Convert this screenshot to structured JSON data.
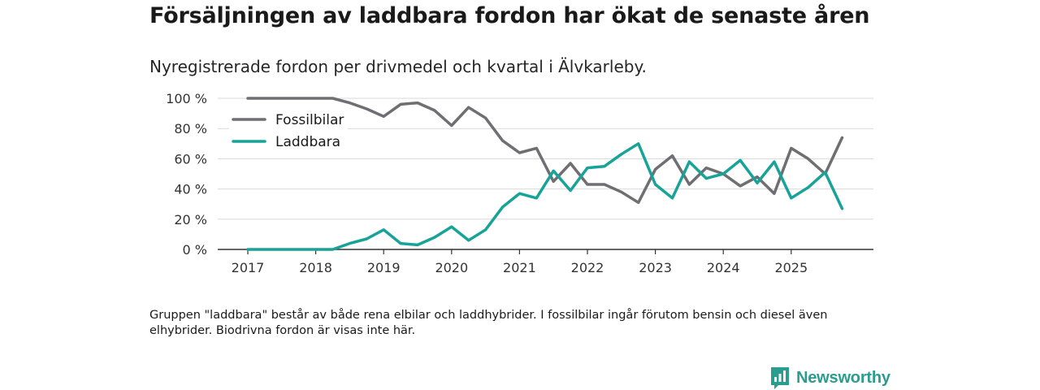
{
  "title": "Försäljningen av laddbara fordon har ökat de senaste åren",
  "subtitle": "Nyregistrerade fordon per drivmedel och kvartal i Älvkarleby.",
  "footnote": "Gruppen \"laddbara\" består av både rena elbilar och laddhybrider. I fossilbilar ingår förutom bensin och diesel även elhybrider. Biodrivna fordon är visas inte här.",
  "brand": {
    "name": "Newsworthy",
    "color": "#2a9d8f"
  },
  "chart_data": {
    "type": "line",
    "title": "Försäljningen av laddbara fordon har ökat de senaste åren",
    "xlabel": "",
    "ylabel": "",
    "x": [
      "2017 K1",
      "2017 K2",
      "2017 K3",
      "2017 K4",
      "2018 K1",
      "2018 K2",
      "2018 K3",
      "2018 K4",
      "2019 K1",
      "2019 K2",
      "2019 K3",
      "2019 K4",
      "2020 K1",
      "2020 K2",
      "2020 K3",
      "2020 K4",
      "2021 K1",
      "2021 K2",
      "2021 K3",
      "2021 K4",
      "2022 K1",
      "2022 K2",
      "2022 K3",
      "2022 K4",
      "2023 K1",
      "2023 K2",
      "2023 K3",
      "2023 K4",
      "2024 K1",
      "2024 K2",
      "2024 K3",
      "2024 K4",
      "2025 K1",
      "2025 K2",
      "2025 K3",
      "2025 K4"
    ],
    "x_ticks": [
      "2017",
      "2018",
      "2019",
      "2020",
      "2021",
      "2022",
      "2023",
      "2024",
      "2025"
    ],
    "y_ticks": [
      "0 %",
      "20 %",
      "40 %",
      "60 %",
      "80 %",
      "100 %"
    ],
    "ylim": [
      0,
      100
    ],
    "grid": true,
    "legend_position": "top-left",
    "series": [
      {
        "name": "Fossilbilar",
        "color": "#6e6e73",
        "values": [
          100,
          100,
          100,
          100,
          100,
          100,
          97,
          93,
          88,
          96,
          97,
          92,
          82,
          94,
          87,
          72,
          64,
          67,
          45,
          57,
          43,
          43,
          38,
          31,
          53,
          62,
          43,
          54,
          50,
          42,
          48,
          37,
          67,
          60,
          50,
          74
        ]
      },
      {
        "name": "Laddbara",
        "color": "#17a398",
        "values": [
          0,
          0,
          0,
          0,
          0,
          0,
          4,
          7,
          13,
          4,
          3,
          8,
          15,
          6,
          13,
          28,
          37,
          34,
          52,
          39,
          54,
          55,
          63,
          70,
          43,
          34,
          58,
          47,
          50,
          59,
          44,
          58,
          34,
          41,
          51,
          27
        ]
      }
    ]
  }
}
